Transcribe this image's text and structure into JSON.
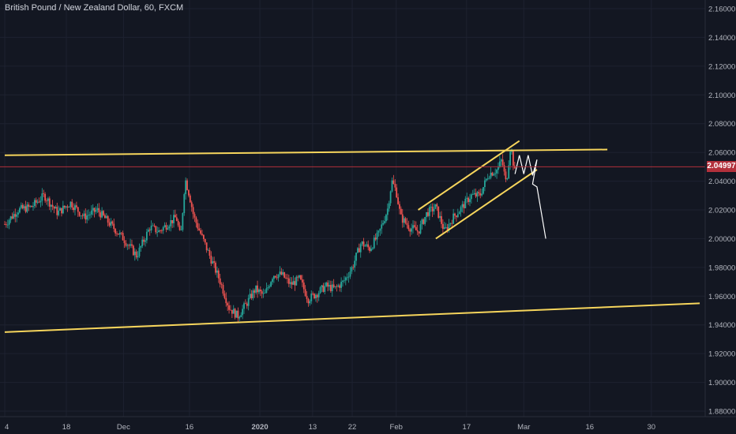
{
  "header": {
    "title": "British Pound / New Zealand Dollar, 60, FXCM"
  },
  "colors": {
    "background": "#131722",
    "grid": "#1e2230",
    "axis_text": "#b2b5be",
    "up": "#26a69a",
    "down": "#ef5350",
    "trendline": "#f6d55c",
    "projection": "#ffffff",
    "last_price_line": "#b2303b",
    "last_price_tag": "#b2303b"
  },
  "last_price": {
    "value": 2.04997,
    "label": "2.04997"
  },
  "chart_data": {
    "type": "candlestick",
    "title": "British Pound / New Zealand Dollar, 60, FXCM",
    "symbol": "GBPNZD",
    "interval": "60",
    "source": "FXCM",
    "ylim": [
      1.875,
      2.165
    ],
    "y_ticks": [
      "2.16000",
      "2.14000",
      "2.12000",
      "2.10000",
      "2.08000",
      "2.06000",
      "2.04000",
      "2.02000",
      "2.00000",
      "1.98000",
      "1.96000",
      "1.94000",
      "1.92000",
      "1.90000",
      "1.88000"
    ],
    "y_tick_values": [
      2.16,
      2.14,
      2.12,
      2.1,
      2.08,
      2.06,
      2.04,
      2.02,
      2.0,
      1.98,
      1.96,
      1.94,
      1.92,
      1.9,
      1.88
    ],
    "x_ticks": [
      {
        "label": "4",
        "day": 0
      },
      {
        "label": "18",
        "day": 14
      },
      {
        "label": "Dec",
        "day": 27
      },
      {
        "label": "16",
        "day": 42
      },
      {
        "label": "2020",
        "day": 58
      },
      {
        "label": "13",
        "day": 70
      },
      {
        "label": "22",
        "day": 79
      },
      {
        "label": "Feb",
        "day": 89
      },
      {
        "label": "17",
        "day": 105
      },
      {
        "label": "Mar",
        "day": 118
      },
      {
        "label": "16",
        "day": 133
      },
      {
        "label": "30",
        "day": 147
      }
    ],
    "price_path": [
      [
        0,
        2.01
      ],
      [
        3,
        2.02
      ],
      [
        6,
        2.022
      ],
      [
        9,
        2.03
      ],
      [
        12,
        2.018
      ],
      [
        15,
        2.025
      ],
      [
        18,
        2.015
      ],
      [
        21,
        2.02
      ],
      [
        24,
        2.01
      ],
      [
        27,
        2.0
      ],
      [
        30,
        1.988
      ],
      [
        33,
        2.008
      ],
      [
        35,
        2.005
      ],
      [
        37,
        2.01
      ],
      [
        39,
        2.015
      ],
      [
        40,
        2.0
      ],
      [
        41,
        2.042
      ],
      [
        42,
        2.03
      ],
      [
        43,
        2.015
      ],
      [
        45,
        2.0
      ],
      [
        47,
        1.985
      ],
      [
        49,
        1.97
      ],
      [
        51,
        1.952
      ],
      [
        53,
        1.946
      ],
      [
        55,
        1.955
      ],
      [
        57,
        1.965
      ],
      [
        59,
        1.96
      ],
      [
        61,
        1.975
      ],
      [
        63,
        1.975
      ],
      [
        65,
        1.968
      ],
      [
        67,
        1.972
      ],
      [
        69,
        1.958
      ],
      [
        71,
        1.962
      ],
      [
        73,
        1.967
      ],
      [
        75,
        1.965
      ],
      [
        77,
        1.97
      ],
      [
        79,
        1.98
      ],
      [
        81,
        1.997
      ],
      [
        83,
        1.993
      ],
      [
        85,
        2.003
      ],
      [
        87,
        2.02
      ],
      [
        88,
        2.04
      ],
      [
        89,
        2.033
      ],
      [
        90,
        2.015
      ],
      [
        92,
        2.008
      ],
      [
        94,
        2.005
      ],
      [
        96,
        2.018
      ],
      [
        98,
        2.022
      ],
      [
        100,
        2.005
      ],
      [
        102,
        2.015
      ],
      [
        104,
        2.022
      ],
      [
        106,
        2.03
      ],
      [
        108,
        2.03
      ],
      [
        110,
        2.045
      ],
      [
        112,
        2.048
      ],
      [
        113,
        2.055
      ],
      [
        114,
        2.038
      ],
      [
        115,
        2.065
      ],
      [
        116,
        2.045
      ]
    ],
    "annotations": {
      "trendlines": [
        {
          "name": "upper-resistance",
          "from": [
            0,
            2.058
          ],
          "to": [
            137,
            2.062
          ]
        },
        {
          "name": "lower-support",
          "from": [
            0,
            1.935
          ],
          "to": [
            158,
            1.955
          ]
        },
        {
          "name": "channel-top",
          "from": [
            94,
            2.02
          ],
          "to": [
            117,
            2.068
          ]
        },
        {
          "name": "channel-bottom",
          "from": [
            98,
            2.0
          ],
          "to": [
            121,
            2.048
          ]
        }
      ],
      "projection_path": [
        [
          116,
          2.045
        ],
        [
          117,
          2.058
        ],
        [
          118,
          2.045
        ],
        [
          119,
          2.058
        ],
        [
          120,
          2.044
        ],
        [
          121,
          2.055
        ],
        [
          120,
          2.038
        ],
        [
          121,
          2.036
        ],
        [
          123,
          2.0
        ]
      ]
    }
  }
}
